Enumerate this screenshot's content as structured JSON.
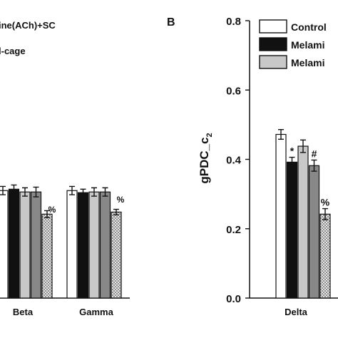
{
  "left_panel": {
    "legend_lines": [
      "ine(ACh)+SC",
      "l-cage"
    ],
    "categories": [
      "Beta",
      "Gamma"
    ],
    "annotations": [
      "%",
      "%"
    ],
    "chart_data": {
      "type": "bar",
      "categories": [
        "Beta",
        "Gamma"
      ],
      "series": [
        {
          "values": [
            0.31,
            0.31
          ],
          "errors": [
            0.012,
            0.012
          ]
        },
        {
          "values": [
            0.314,
            0.304
          ],
          "errors": [
            0.012,
            0.01
          ]
        },
        {
          "values": [
            0.306,
            0.306
          ],
          "errors": [
            0.012,
            0.012
          ]
        },
        {
          "values": [
            0.306,
            0.306
          ],
          "errors": [
            0.014,
            0.012
          ]
        },
        {
          "values": [
            0.242,
            0.248
          ],
          "errors": [
            0.01,
            0.008
          ]
        }
      ]
    }
  },
  "right_panel": {
    "panel_label": "B",
    "chart_data": {
      "type": "bar",
      "categories": [
        "Delta"
      ],
      "ylabel": "gPDC_c",
      "ylabel_subscript": "2",
      "ylim": [
        0.0,
        0.8
      ],
      "yticks": [
        "0.0",
        "0.2",
        "0.4",
        "0.6",
        "0.8"
      ],
      "series": [
        {
          "name": "Control",
          "values": [
            0.472
          ],
          "errors": [
            0.014
          ],
          "color": "#ffffff"
        },
        {
          "name": "Melami",
          "values": [
            0.392
          ],
          "errors": [
            0.014
          ],
          "color": "#111111",
          "annotation": "*"
        },
        {
          "name": "Melami",
          "values": [
            0.438
          ],
          "errors": [
            0.018
          ],
          "color": "#c8c8c8"
        },
        {
          "values": [
            0.382
          ],
          "errors": [
            0.016
          ],
          "color": "#888888",
          "annotation": "#"
        },
        {
          "values": [
            0.242
          ],
          "errors": [
            0.016
          ],
          "color": "hatched",
          "annotation": "%"
        }
      ]
    }
  },
  "colors": {
    "white": "#ffffff",
    "black": "#111111",
    "lightgray": "#c8c8c8",
    "darkgray": "#888888",
    "hatch": "#777777"
  }
}
